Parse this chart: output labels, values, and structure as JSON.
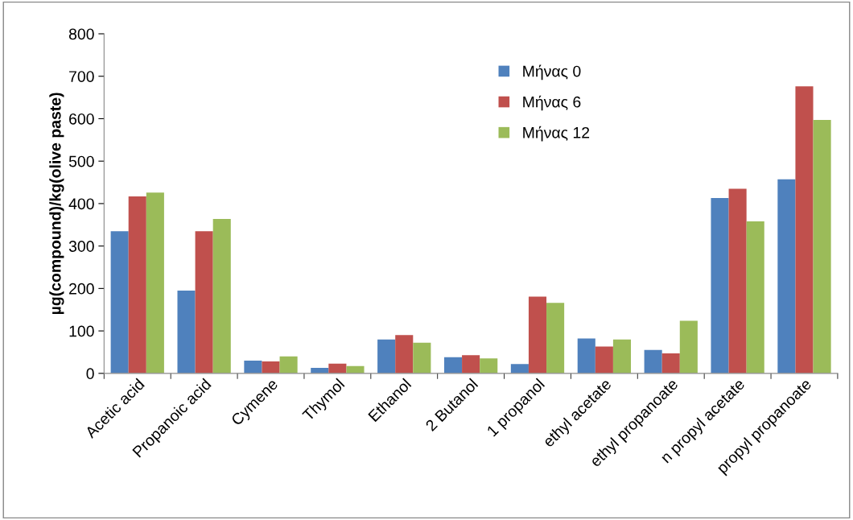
{
  "chart_data": {
    "type": "bar",
    "ylabel": "µg(compound)/kg(olive paste)",
    "categories": [
      "Acetic acid",
      "Propanoic acid",
      "Cymene",
      "Thymol",
      "Ethanol",
      "2 Butanol",
      "1 propanol",
      "ethyl acetate",
      "ethyl propanoate",
      "n propyl acetate",
      "propyl propanoate"
    ],
    "series": [
      {
        "name": "Μήνας 0",
        "color": "#4f81bd",
        "values": [
          335,
          195,
          30,
          13,
          80,
          38,
          22,
          82,
          55,
          413,
          457
        ]
      },
      {
        "name": "Μήνας 6",
        "color": "#c0504d",
        "values": [
          417,
          335,
          28,
          23,
          90,
          43,
          181,
          63,
          47,
          435,
          676
        ]
      },
      {
        "name": "Μήνας 12",
        "color": "#9bbb59",
        "values": [
          426,
          364,
          40,
          17,
          72,
          35,
          166,
          80,
          124,
          358,
          597
        ]
      }
    ],
    "ylim": [
      0,
      800
    ],
    "yticks": [
      0,
      100,
      200,
      300,
      400,
      500,
      600,
      700,
      800
    ],
    "grid": false,
    "legend": "top"
  }
}
